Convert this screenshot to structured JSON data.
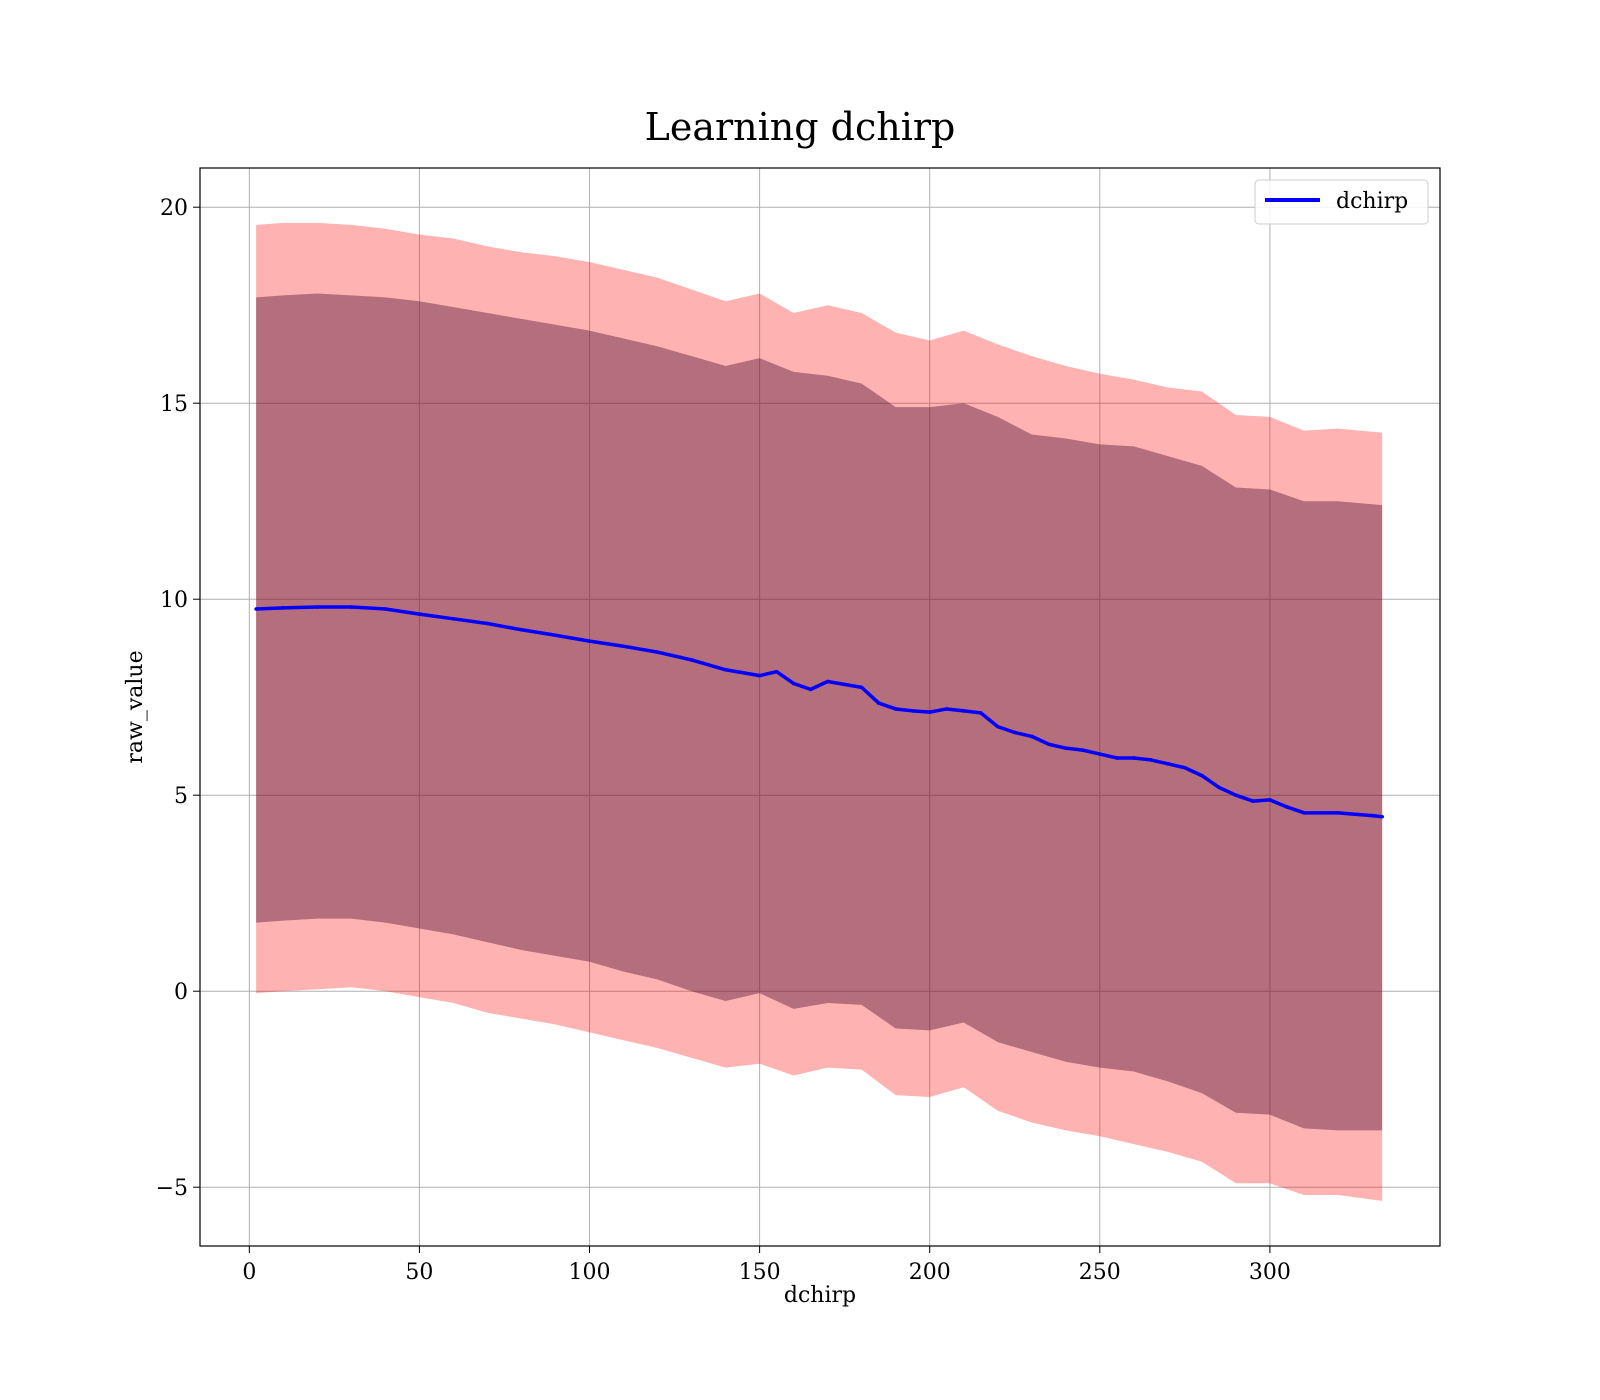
{
  "chart_data": {
    "type": "line",
    "title": "Learning dchirp",
    "xlabel": "dchirp",
    "ylabel": "raw_value",
    "xlim": [
      -14.5,
      350
    ],
    "ylim": [
      -6.5,
      21
    ],
    "xticks": [
      0,
      50,
      100,
      150,
      200,
      250,
      300
    ],
    "xtick_labels": [
      "0",
      "50",
      "100",
      "150",
      "200",
      "250",
      "300"
    ],
    "yticks": [
      -5,
      0,
      5,
      10,
      15,
      20
    ],
    "ytick_labels": [
      "−5",
      "0",
      "5",
      "10",
      "15",
      "20"
    ],
    "grid": true,
    "legend": {
      "placement": "top-right",
      "entries": [
        "dchirp"
      ]
    },
    "colors": {
      "line": "#0000ff",
      "outer_band": "#ff0000",
      "inner_band": "#5a1a3a",
      "grid": "#b0b0b0"
    },
    "series": [
      {
        "name": "dchirp",
        "x": [
          2,
          10,
          20,
          30,
          40,
          50,
          60,
          70,
          80,
          90,
          100,
          110,
          120,
          130,
          140,
          150,
          155,
          160,
          165,
          170,
          180,
          185,
          190,
          195,
          200,
          205,
          210,
          215,
          220,
          225,
          230,
          235,
          240,
          245,
          250,
          255,
          260,
          265,
          270,
          275,
          280,
          285,
          290,
          295,
          300,
          305,
          310,
          320,
          330,
          333
        ],
        "y": [
          9.75,
          9.78,
          9.8,
          9.8,
          9.75,
          9.62,
          9.5,
          9.38,
          9.22,
          9.08,
          8.93,
          8.8,
          8.65,
          8.45,
          8.2,
          8.05,
          8.15,
          7.85,
          7.7,
          7.9,
          7.75,
          7.35,
          7.2,
          7.15,
          7.12,
          7.2,
          7.15,
          7.1,
          6.75,
          6.6,
          6.5,
          6.3,
          6.2,
          6.15,
          6.05,
          5.95,
          5.95,
          5.9,
          5.8,
          5.7,
          5.5,
          5.2,
          5.0,
          4.85,
          4.88,
          4.7,
          4.55,
          4.55,
          4.48,
          4.45
        ]
      }
    ],
    "bands": [
      {
        "role": "outer",
        "x": [
          2,
          10,
          20,
          30,
          40,
          50,
          60,
          70,
          80,
          90,
          100,
          110,
          120,
          130,
          140,
          150,
          160,
          170,
          180,
          190,
          200,
          210,
          220,
          230,
          240,
          250,
          260,
          270,
          280,
          290,
          300,
          310,
          320,
          333
        ],
        "upper": [
          19.55,
          19.6,
          19.6,
          19.55,
          19.45,
          19.3,
          19.2,
          19.0,
          18.85,
          18.75,
          18.6,
          18.4,
          18.2,
          17.9,
          17.6,
          17.8,
          17.3,
          17.5,
          17.3,
          16.8,
          16.6,
          16.85,
          16.5,
          16.2,
          15.95,
          15.75,
          15.6,
          15.4,
          15.3,
          14.7,
          14.65,
          14.3,
          14.35,
          14.25
        ],
        "lower": [
          -0.05,
          0.0,
          0.05,
          0.1,
          0.0,
          -0.15,
          -0.3,
          -0.55,
          -0.7,
          -0.85,
          -1.05,
          -1.25,
          -1.45,
          -1.7,
          -1.95,
          -1.85,
          -2.15,
          -1.95,
          -2.0,
          -2.65,
          -2.7,
          -2.45,
          -3.05,
          -3.35,
          -3.55,
          -3.7,
          -3.9,
          -4.1,
          -4.35,
          -4.9,
          -4.9,
          -5.2,
          -5.2,
          -5.35
        ]
      },
      {
        "role": "inner",
        "x": [
          2,
          10,
          20,
          30,
          40,
          50,
          60,
          70,
          80,
          90,
          100,
          110,
          120,
          130,
          140,
          150,
          160,
          170,
          180,
          190,
          200,
          210,
          220,
          230,
          240,
          250,
          260,
          270,
          280,
          290,
          300,
          310,
          320,
          333
        ],
        "upper": [
          17.7,
          17.75,
          17.8,
          17.75,
          17.7,
          17.6,
          17.45,
          17.3,
          17.15,
          17.0,
          16.85,
          16.65,
          16.45,
          16.2,
          15.95,
          16.15,
          15.8,
          15.7,
          15.5,
          14.9,
          14.9,
          15.0,
          14.65,
          14.2,
          14.1,
          13.95,
          13.9,
          13.65,
          13.4,
          12.85,
          12.8,
          12.5,
          12.5,
          12.4
        ],
        "lower": [
          1.75,
          1.8,
          1.85,
          1.85,
          1.75,
          1.6,
          1.45,
          1.25,
          1.05,
          0.9,
          0.75,
          0.5,
          0.3,
          0.0,
          -0.25,
          -0.05,
          -0.45,
          -0.3,
          -0.35,
          -0.95,
          -1.0,
          -0.8,
          -1.3,
          -1.55,
          -1.8,
          -1.95,
          -2.05,
          -2.3,
          -2.6,
          -3.1,
          -3.15,
          -3.5,
          -3.55,
          -3.55
        ]
      }
    ]
  }
}
